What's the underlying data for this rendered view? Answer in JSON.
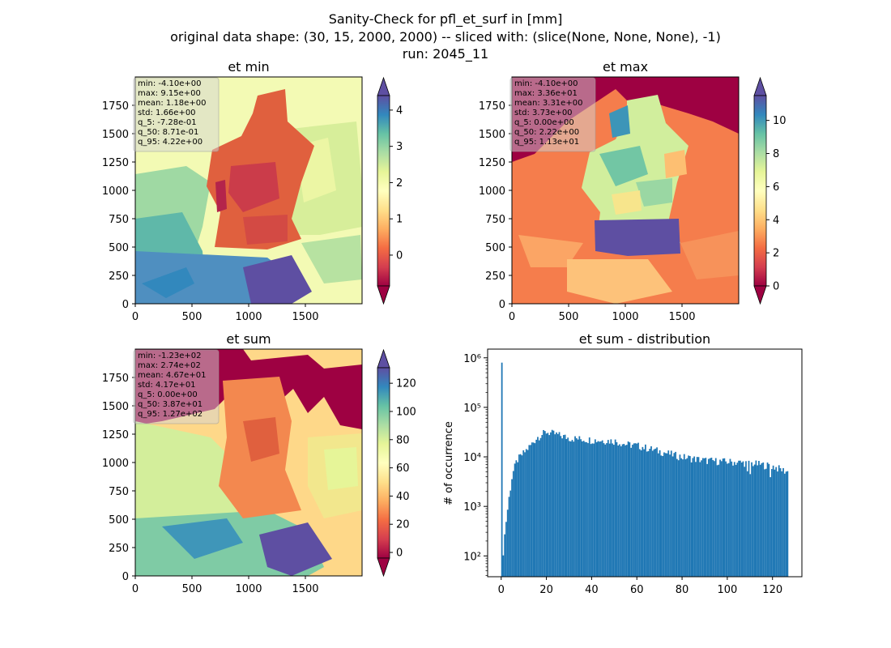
{
  "figure": {
    "suptitle_lines": [
      "Sanity-Check for pfl_et_surf in [mm]",
      "original data shape: (30, 15, 2000, 2000) -- sliced with: (slice(None, None, None), -1)",
      "run: 2045_11"
    ]
  },
  "colors": {
    "histogram_bar": "#1f77b4",
    "stats_box": "#d3d3d3",
    "colormap_name": "Spectral",
    "colormap_stops": [
      "#9e0142",
      "#d53e4f",
      "#f46d43",
      "#fdae61",
      "#fee08b",
      "#ffffbf",
      "#e6f598",
      "#abdda4",
      "#66c2a5",
      "#3288bd",
      "#5e4fa2"
    ]
  },
  "chart_data": [
    {
      "type": "heatmap",
      "title": "et min",
      "xlim": [
        0,
        2000
      ],
      "ylim": [
        0,
        2000
      ],
      "xticks": [
        0,
        500,
        1000,
        1500
      ],
      "yticks": [
        0,
        250,
        500,
        750,
        1000,
        1250,
        1500,
        1750
      ],
      "colorbar": {
        "vmin": -0.85,
        "vmax": 4.4,
        "ticks": [
          0,
          1,
          2,
          3,
          4
        ],
        "extend": "both",
        "cmap": "Spectral"
      },
      "stats": [
        "min: -4.10e+00",
        "max: 9.15e+00",
        "mean: 1.18e+00",
        "std: 1.66e+00",
        "q_5: -7.28e-01",
        "q_50: 8.71e-01",
        "q_95: 4.22e+00"
      ]
    },
    {
      "type": "heatmap",
      "title": "et max",
      "xlim": [
        0,
        2000
      ],
      "ylim": [
        0,
        2000
      ],
      "xticks": [
        0,
        500,
        1000,
        1500
      ],
      "yticks": [
        0,
        250,
        500,
        750,
        1000,
        1250,
        1500,
        1750
      ],
      "colorbar": {
        "vmin": 0,
        "vmax": 11.5,
        "ticks": [
          0,
          2,
          4,
          6,
          8,
          10
        ],
        "extend": "both",
        "cmap": "Spectral"
      },
      "stats": [
        "min: -4.10e+00",
        "max: 3.36e+01",
        "mean: 3.31e+00",
        "std: 3.73e+00",
        "q_5: 0.00e+00",
        "q_50: 2.22e+00",
        "q_95: 1.13e+01"
      ]
    },
    {
      "type": "heatmap",
      "title": "et sum",
      "xlim": [
        0,
        2000
      ],
      "ylim": [
        0,
        2000
      ],
      "xticks": [
        0,
        500,
        1000,
        1500
      ],
      "yticks": [
        0,
        250,
        500,
        750,
        1000,
        1250,
        1500,
        1750
      ],
      "colorbar": {
        "vmin": -4,
        "vmax": 131,
        "ticks": [
          0,
          20,
          40,
          60,
          80,
          100,
          120
        ],
        "extend": "both",
        "cmap": "Spectral"
      },
      "stats": [
        "min: -1.23e+02",
        "max: 2.74e+02",
        "mean: 4.67e+01",
        "std: 4.17e+01",
        "q_5: 0.00e+00",
        "q_50: 3.87e+01",
        "q_95: 1.27e+02"
      ]
    },
    {
      "type": "bar",
      "subtype": "histogram",
      "title": "et sum - distribution",
      "ylabel": "# of occurrence",
      "yscale": "log",
      "xlim": [
        -6,
        133
      ],
      "ylim": [
        38,
        1500000
      ],
      "xticks": [
        0,
        20,
        40,
        60,
        80,
        100,
        120
      ],
      "yticks": [
        {
          "value": 100,
          "label": "10²"
        },
        {
          "value": 1000,
          "label": "10³"
        },
        {
          "value": 10000,
          "label": "10⁴"
        },
        {
          "value": 100000,
          "label": "10⁵"
        },
        {
          "value": 1000000,
          "label": "10⁶"
        }
      ],
      "bin_range": [
        0,
        127
      ],
      "bin_count": 200,
      "profile": {
        "spike": {
          "x": 0.0,
          "value": 800000
        },
        "early": [
          [
            0.3,
            90
          ],
          [
            0.6,
            70
          ],
          [
            1.2,
            180
          ],
          [
            2.2,
            500
          ],
          [
            3.5,
            1500
          ],
          [
            5,
            4500
          ],
          [
            7,
            8500
          ],
          [
            10,
            12000
          ],
          [
            13,
            17000
          ],
          [
            16,
            25000
          ],
          [
            20,
            32000
          ],
          [
            25,
            28000
          ],
          [
            30,
            24000
          ],
          [
            40,
            22000
          ],
          [
            50,
            21000
          ],
          [
            55,
            18000
          ],
          [
            60,
            17000
          ],
          [
            70,
            13000
          ],
          [
            80,
            10000
          ],
          [
            90,
            8500
          ],
          [
            100,
            8000
          ],
          [
            110,
            7500
          ],
          [
            120,
            6500
          ],
          [
            126.5,
            5000
          ]
        ]
      }
    }
  ]
}
